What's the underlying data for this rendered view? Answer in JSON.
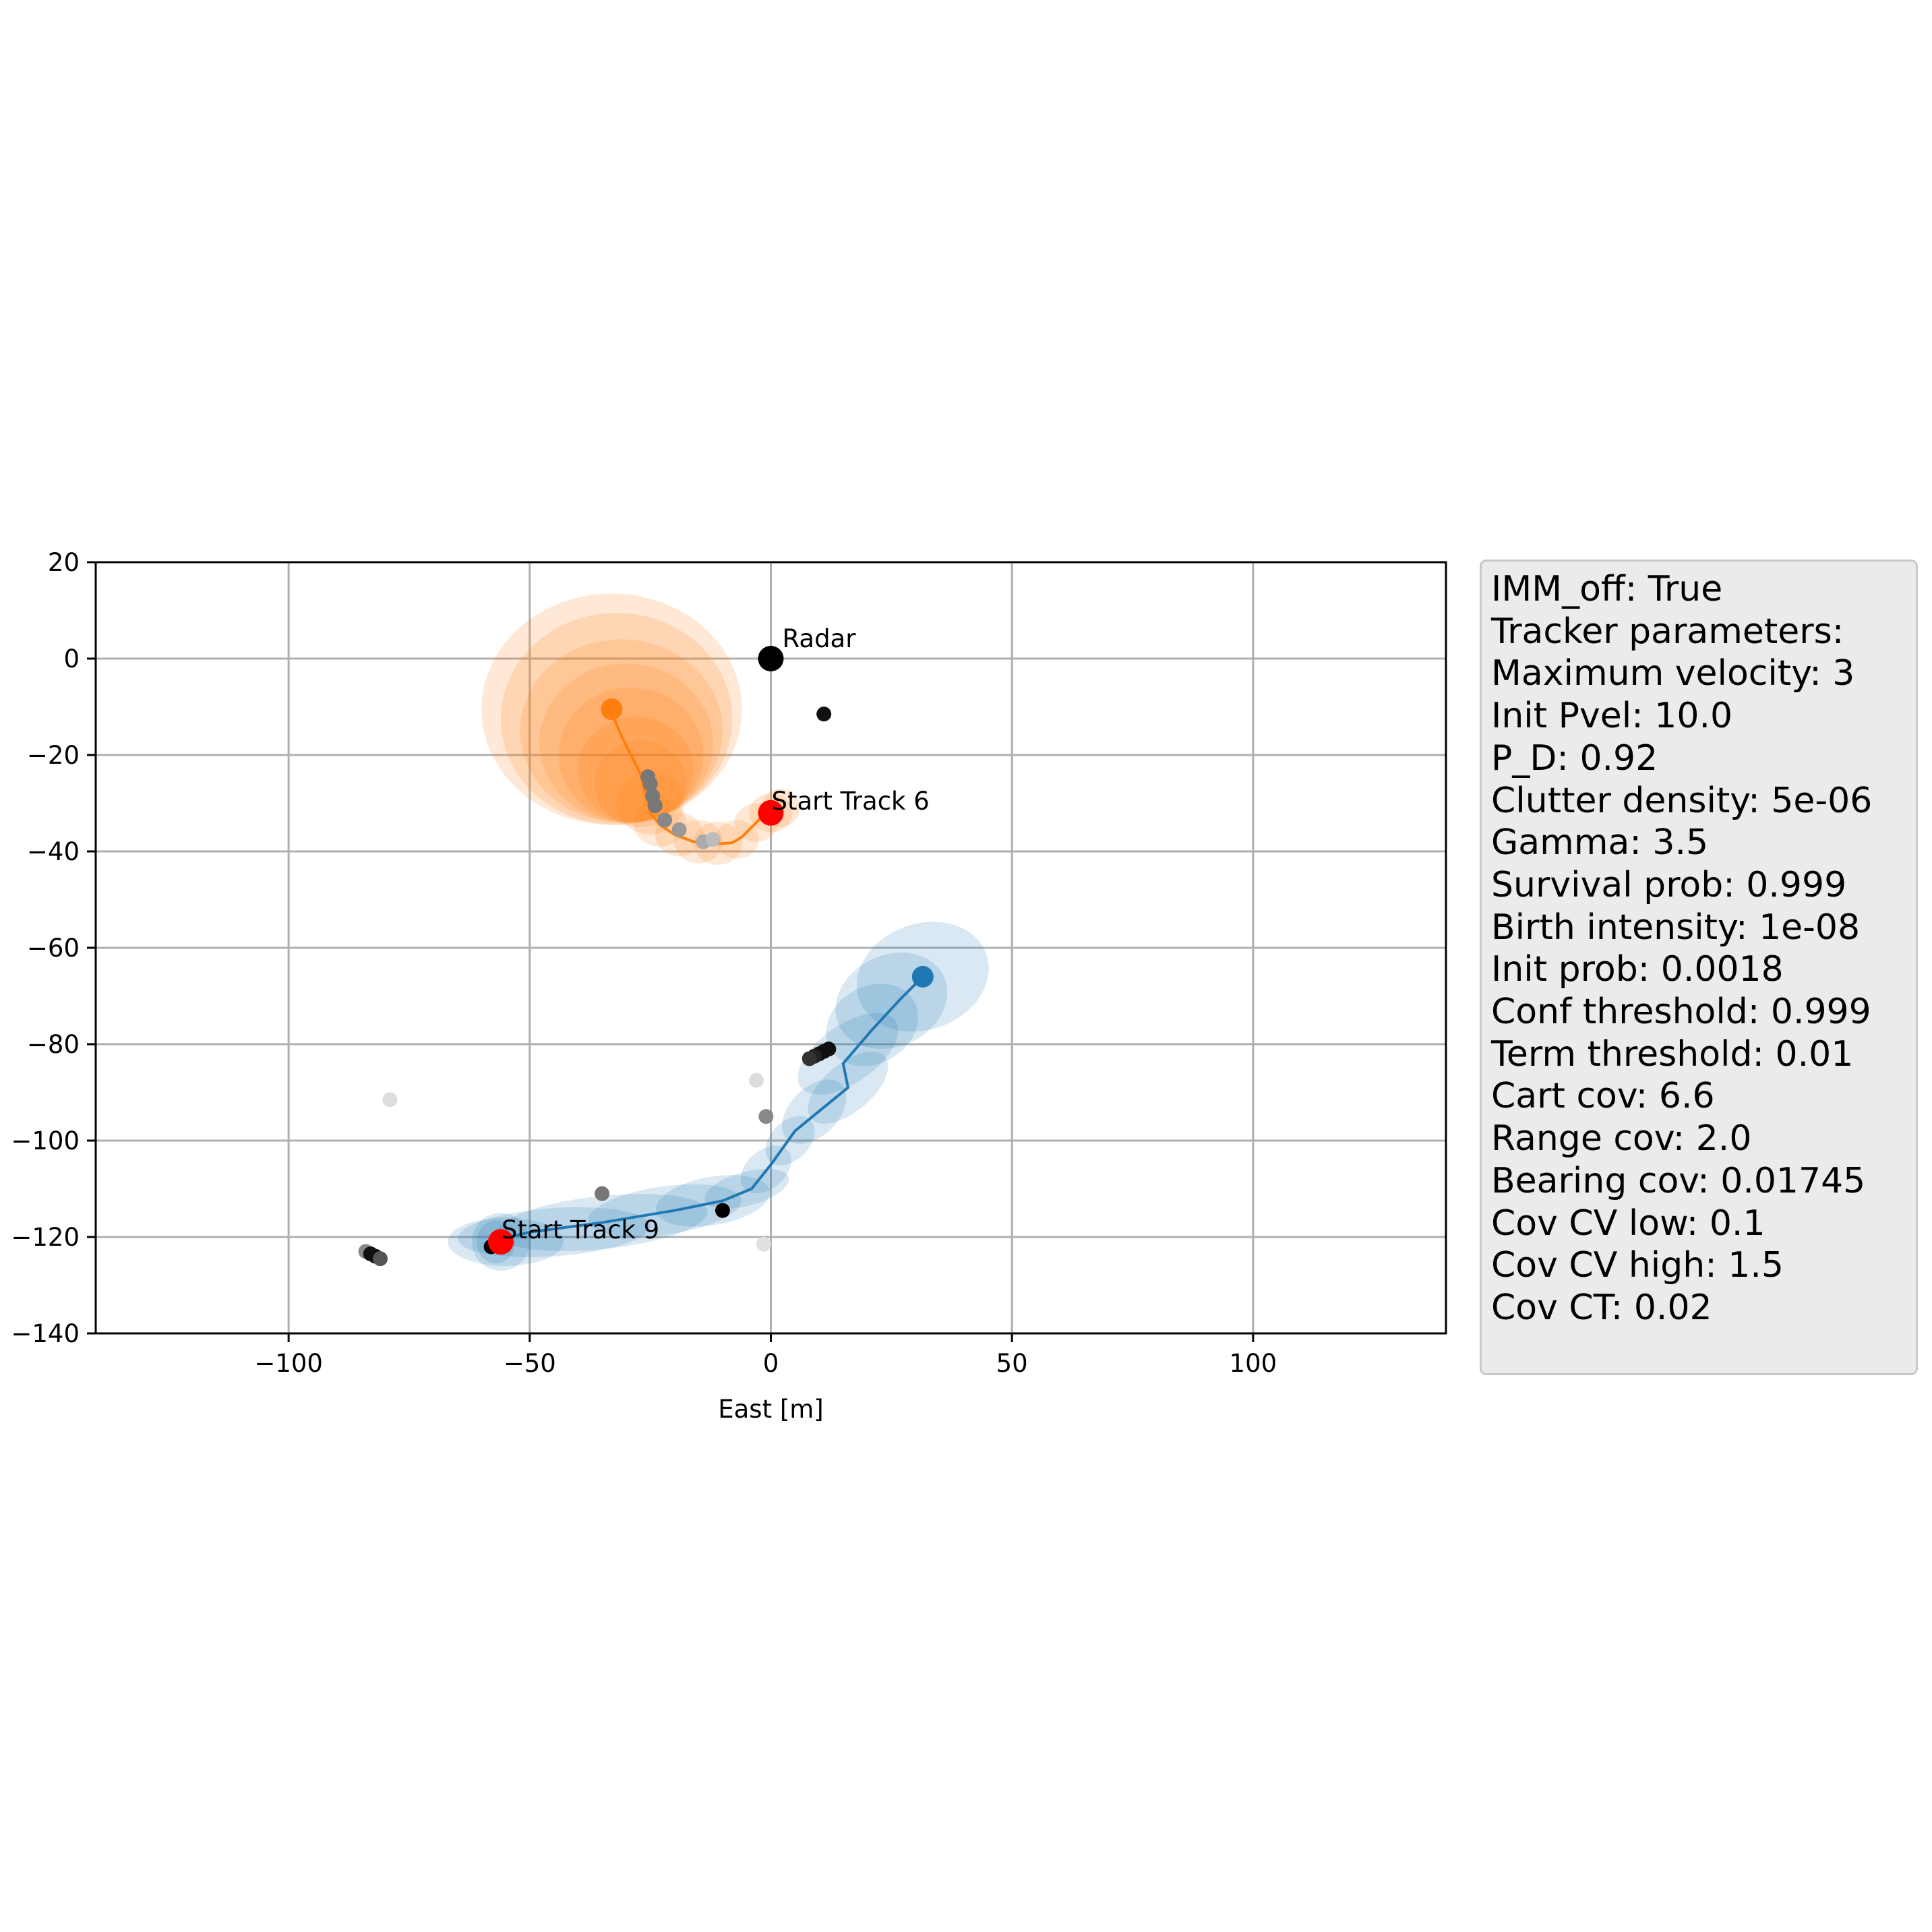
{
  "chart_data": {
    "type": "scatter",
    "title": "",
    "xlabel": "East [m]",
    "ylabel": "",
    "xlim": [
      -140,
      140
    ],
    "ylim": [
      -140,
      20
    ],
    "xticks": [
      -100,
      -50,
      0,
      50,
      100
    ],
    "yticks": [
      20,
      0,
      -20,
      -40,
      -60,
      -80,
      -100,
      -120,
      -140
    ],
    "xtick_labels": [
      "−100",
      "−50",
      "0",
      "50",
      "100"
    ],
    "ytick_labels": [
      "20",
      "0",
      "−20",
      "−40",
      "−60",
      "−80",
      "−100",
      "−120",
      "−140"
    ],
    "grid": true,
    "radar": {
      "label": "Radar",
      "x": 0,
      "y": 0
    },
    "tracks": [
      {
        "id": 6,
        "color": "#ff7f0e",
        "start_label": "Start Track 6",
        "start": {
          "x": 0,
          "y": -32
        },
        "end": {
          "x": -33,
          "y": -10.5
        },
        "path": [
          {
            "x": 0,
            "y": -32
          },
          {
            "x": -2,
            "y": -33
          },
          {
            "x": -4,
            "y": -35
          },
          {
            "x": -6,
            "y": -37
          },
          {
            "x": -8,
            "y": -38.2
          },
          {
            "x": -12,
            "y": -38.5
          },
          {
            "x": -16,
            "y": -38
          },
          {
            "x": -20,
            "y": -36.5
          },
          {
            "x": -23,
            "y": -34.5
          },
          {
            "x": -25,
            "y": -32
          },
          {
            "x": -26,
            "y": -28
          },
          {
            "x": -27,
            "y": -24
          },
          {
            "x": -29,
            "y": -20
          },
          {
            "x": -31,
            "y": -16
          },
          {
            "x": -32.5,
            "y": -12.5
          },
          {
            "x": -33,
            "y": -10.5
          }
        ],
        "covariance_ellipses": [
          {
            "x": -33,
            "y": -10.5,
            "rx": 27,
            "ry": 24
          },
          {
            "x": -32,
            "y": -12.5,
            "rx": 24,
            "ry": 22
          },
          {
            "x": -31,
            "y": -15,
            "rx": 21,
            "ry": 19
          },
          {
            "x": -30,
            "y": -17.5,
            "rx": 18,
            "ry": 16.5
          },
          {
            "x": -29,
            "y": -20,
            "rx": 15,
            "ry": 14
          },
          {
            "x": -28,
            "y": -23,
            "rx": 12,
            "ry": 11
          },
          {
            "x": -27,
            "y": -26,
            "rx": 9.5,
            "ry": 9
          },
          {
            "x": -25,
            "y": -30,
            "rx": 7,
            "ry": 6.5
          },
          {
            "x": -23,
            "y": -34,
            "rx": 5.5,
            "ry": 5
          },
          {
            "x": -19,
            "y": -36.5,
            "rx": 5,
            "ry": 4.5
          },
          {
            "x": -15,
            "y": -38,
            "rx": 5,
            "ry": 4.5
          },
          {
            "x": -11,
            "y": -38.3,
            "rx": 5,
            "ry": 4.5
          },
          {
            "x": -7,
            "y": -37.5,
            "rx": 4.5,
            "ry": 4
          },
          {
            "x": -3,
            "y": -34,
            "rx": 4.5,
            "ry": 4
          },
          {
            "x": 0,
            "y": -32,
            "rx": 4.5,
            "ry": 4
          },
          {
            "x": 2,
            "y": -31,
            "rx": 4,
            "ry": 4
          }
        ]
      },
      {
        "id": 9,
        "color": "#1f77b4",
        "start_label": "Start Track 9",
        "start": {
          "x": -56,
          "y": -121
        },
        "end": {
          "x": 31.5,
          "y": -66
        },
        "path": [
          {
            "x": -56,
            "y": -121
          },
          {
            "x": -58,
            "y": -121
          },
          {
            "x": -50,
            "y": -119
          },
          {
            "x": -35,
            "y": -117
          },
          {
            "x": -20,
            "y": -114.5
          },
          {
            "x": -10,
            "y": -112.5
          },
          {
            "x": -4,
            "y": -110
          },
          {
            "x": 0,
            "y": -105
          },
          {
            "x": 5,
            "y": -98
          },
          {
            "x": 16,
            "y": -89
          },
          {
            "x": 15,
            "y": -84
          },
          {
            "x": 21,
            "y": -77
          },
          {
            "x": 27,
            "y": -70.5
          },
          {
            "x": 31.5,
            "y": -66
          }
        ],
        "covariance_ellipses": [
          {
            "x": 31.5,
            "y": -66,
            "rx": 14,
            "ry": 11,
            "angle": -20
          },
          {
            "x": 25,
            "y": -71,
            "rx": 12,
            "ry": 9.5,
            "angle": -25
          },
          {
            "x": 21,
            "y": -76,
            "rx": 10,
            "ry": 8,
            "angle": -30
          },
          {
            "x": 16,
            "y": -82,
            "rx": 12,
            "ry": 6,
            "angle": -35
          },
          {
            "x": 16,
            "y": -89,
            "rx": 10,
            "ry": 5,
            "angle": -40
          },
          {
            "x": 9,
            "y": -94,
            "rx": 8,
            "ry": 5,
            "angle": -45
          },
          {
            "x": 4,
            "y": -100,
            "rx": 6,
            "ry": 4,
            "angle": -45
          },
          {
            "x": -1,
            "y": -106,
            "rx": 6,
            "ry": 4,
            "angle": -40
          },
          {
            "x": -5,
            "y": -110,
            "rx": 9,
            "ry": 3.5,
            "angle": -15
          },
          {
            "x": -12,
            "y": -112.5,
            "rx": 12,
            "ry": 5,
            "angle": -10
          },
          {
            "x": -22,
            "y": -114.5,
            "rx": 16,
            "ry": 5,
            "angle": -8
          },
          {
            "x": -35,
            "y": -117,
            "rx": 22,
            "ry": 5.5,
            "angle": -6
          },
          {
            "x": -45,
            "y": -119,
            "rx": 20,
            "ry": 5,
            "angle": -4
          },
          {
            "x": -55,
            "y": -121,
            "rx": 12,
            "ry": 5,
            "angle": 0
          },
          {
            "x": -56,
            "y": -121,
            "rx": 6,
            "ry": 6,
            "angle": 0
          },
          {
            "x": -57,
            "y": -121,
            "rx": 4,
            "ry": 4.5,
            "angle": 0
          }
        ]
      }
    ],
    "measurements": [
      {
        "x": 11,
        "y": -11.5,
        "shade": "#111111"
      },
      {
        "x": -25.5,
        "y": -24.5,
        "shade": "#777777"
      },
      {
        "x": -25,
        "y": -26,
        "shade": "#777777"
      },
      {
        "x": -24.5,
        "y": -28.5,
        "shade": "#777777"
      },
      {
        "x": -24,
        "y": -30.5,
        "shade": "#777777"
      },
      {
        "x": -22,
        "y": -33.5,
        "shade": "#888888"
      },
      {
        "x": -19,
        "y": -35.5,
        "shade": "#999999"
      },
      {
        "x": -14,
        "y": -38,
        "shade": "#aaaaaa"
      },
      {
        "x": -12,
        "y": -37.5,
        "shade": "#bbbbbb"
      },
      {
        "x": 12,
        "y": -81,
        "shade": "#111111"
      },
      {
        "x": 11,
        "y": -81.5,
        "shade": "#111111"
      },
      {
        "x": 10,
        "y": -82,
        "shade": "#111111"
      },
      {
        "x": 9,
        "y": -82.5,
        "shade": "#222222"
      },
      {
        "x": 8,
        "y": -83,
        "shade": "#333333"
      },
      {
        "x": -3,
        "y": -87.5,
        "shade": "#dddddd"
      },
      {
        "x": -1,
        "y": -95,
        "shade": "#888888"
      },
      {
        "x": -79,
        "y": -91.5,
        "shade": "#dddddd"
      },
      {
        "x": -35,
        "y": -111,
        "shade": "#777777"
      },
      {
        "x": -10,
        "y": -114.5,
        "shade": "#000000"
      },
      {
        "x": -58,
        "y": -122,
        "shade": "#000000"
      },
      {
        "x": -84,
        "y": -123,
        "shade": "#888888"
      },
      {
        "x": -83,
        "y": -123.5,
        "shade": "#111111"
      },
      {
        "x": -82,
        "y": -124,
        "shade": "#111111"
      },
      {
        "x": -81,
        "y": -124.5,
        "shade": "#555555"
      },
      {
        "x": -1.5,
        "y": -121.5,
        "shade": "#e0e0e0"
      }
    ]
  },
  "parameters": [
    "IMM_off: True",
    "Tracker parameters:",
    "Maximum velocity: 3",
    "Init Pvel: 10.0",
    "P_D: 0.92",
    "Clutter density: 5e-06",
    "Gamma: 3.5",
    "Survival prob: 0.999",
    "Birth intensity: 1e-08",
    "Init prob: 0.0018",
    "Conf threshold: 0.999",
    "Term threshold: 0.01",
    "Cart cov: 6.6",
    "Range cov: 2.0",
    "Bearing cov: 0.01745",
    "Cov CV low: 0.1",
    "Cov CV high: 1.5",
    "Cov CT: 0.02"
  ],
  "colors": {
    "start_marker": "#ff0000",
    "radar_marker": "#000000",
    "grid": "#b0b0b0",
    "legend_bg": "#ebebeb"
  }
}
